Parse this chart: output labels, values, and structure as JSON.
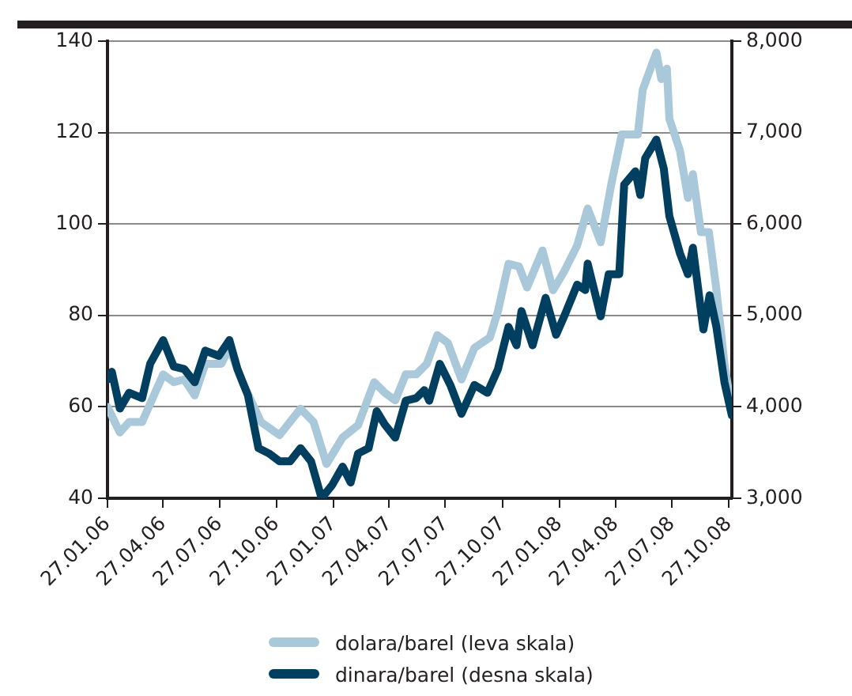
{
  "chart_data": {
    "type": "line",
    "xlim": [
      "2006-01-27",
      "2008-11-01"
    ],
    "xticks": [
      {
        "value": "2006-01-27",
        "label": "27.01.06"
      },
      {
        "value": "2006-04-27",
        "label": "27.04.06"
      },
      {
        "value": "2006-07-27",
        "label": "27.07.06"
      },
      {
        "value": "2006-10-27",
        "label": "27.10.06"
      },
      {
        "value": "2007-01-27",
        "label": "27.01.07"
      },
      {
        "value": "2007-04-27",
        "label": "27.04.07"
      },
      {
        "value": "2007-07-27",
        "label": "27.07.07"
      },
      {
        "value": "2007-10-27",
        "label": "27.10.07"
      },
      {
        "value": "2008-01-27",
        "label": "27.01.08"
      },
      {
        "value": "2008-04-27",
        "label": "27.04.08"
      },
      {
        "value": "2008-07-27",
        "label": "27.07.08"
      },
      {
        "value": "2008-10-27",
        "label": "27.10.08"
      }
    ],
    "ylim": [
      40,
      140
    ],
    "yticks": [
      40,
      60,
      80,
      100,
      120,
      140
    ],
    "y2lim": [
      3000,
      8000
    ],
    "y2ticks": [
      {
        "value": 3000,
        "label": "3,000"
      },
      {
        "value": 4000,
        "label": "4,000"
      },
      {
        "value": 5000,
        "label": "5,000"
      },
      {
        "value": 6000,
        "label": "6,000"
      },
      {
        "value": 7000,
        "label": "7,000"
      },
      {
        "value": 8000,
        "label": "8,000"
      }
    ],
    "grid": "y",
    "legend": "bottom",
    "marker": "none",
    "line_style": "solid",
    "series": [
      {
        "name": "dolara/barel (leva skala)",
        "color": "#a9c8d9",
        "x": [
          "2006-01-27",
          "2006-02-16",
          "2006-03-03",
          "2006-03-24",
          "2006-04-27",
          "2006-05-14",
          "2006-05-31",
          "2006-06-17",
          "2006-07-04",
          "2006-07-30",
          "2006-08-12",
          "2006-09-02",
          "2006-10-02",
          "2006-11-01",
          "2006-12-05",
          "2006-12-26",
          "2007-01-16",
          "2007-02-11",
          "2007-03-08",
          "2007-04-03",
          "2007-04-20",
          "2007-05-07",
          "2007-05-24",
          "2007-06-10",
          "2007-06-27",
          "2007-07-14",
          "2007-07-31",
          "2007-08-22",
          "2007-09-12",
          "2007-10-07",
          "2007-10-20",
          "2007-11-06",
          "2007-11-23",
          "2007-12-06",
          "2007-12-31",
          "2008-01-17",
          "2008-02-04",
          "2008-02-25",
          "2008-03-13",
          "2008-04-03",
          "2008-04-20",
          "2008-05-07",
          "2008-06-02",
          "2008-06-10",
          "2008-07-02",
          "2008-07-10",
          "2008-07-19",
          "2008-07-23",
          "2008-08-09",
          "2008-08-22",
          "2008-08-30",
          "2008-09-12",
          "2008-09-25",
          "2008-10-07",
          "2008-10-20",
          "2008-11-01"
        ],
        "values": [
          60,
          54.4,
          56.7,
          56.7,
          67.1,
          65.4,
          66,
          62.5,
          69.4,
          69.4,
          72.9,
          65.4,
          56.7,
          53.8,
          59.6,
          56.7,
          47.5,
          53.3,
          56,
          65.4,
          63.1,
          61.4,
          67.1,
          67.1,
          69.4,
          75.7,
          74,
          66,
          72.9,
          75.2,
          80.9,
          91.3,
          90.7,
          86.1,
          94.2,
          85.5,
          89.6,
          95.3,
          103.4,
          96,
          108.6,
          119.6,
          119.6,
          129.4,
          137.5,
          131.7,
          134,
          123,
          116.1,
          105.7,
          110.9,
          98.2,
          98.2,
          85.6,
          69.4,
          59
        ]
      },
      {
        "name": "dinara/barel (desna skala)",
        "color": "#003f5f",
        "axis": "y2",
        "x": [
          "2006-01-27",
          "2006-02-03",
          "2006-02-16",
          "2006-03-03",
          "2006-03-24",
          "2006-04-06",
          "2006-04-27",
          "2006-05-14",
          "2006-05-31",
          "2006-06-17",
          "2006-07-04",
          "2006-07-26",
          "2006-08-12",
          "2006-08-25",
          "2006-09-11",
          "2006-09-28",
          "2006-10-15",
          "2006-11-01",
          "2006-11-18",
          "2006-12-05",
          "2006-12-22",
          "2007-01-08",
          "2007-01-25",
          "2007-02-11",
          "2007-02-24",
          "2007-03-08",
          "2007-03-25",
          "2007-04-07",
          "2007-04-20",
          "2007-05-07",
          "2007-05-24",
          "2007-06-10",
          "2007-06-23",
          "2007-07-01",
          "2007-07-18",
          "2007-08-04",
          "2007-08-22",
          "2007-09-12",
          "2007-10-03",
          "2007-10-20",
          "2007-11-06",
          "2007-11-19",
          "2007-11-27",
          "2007-12-15",
          "2008-01-05",
          "2008-01-22",
          "2008-02-04",
          "2008-02-25",
          "2008-03-09",
          "2008-03-13",
          "2008-04-03",
          "2008-04-16",
          "2008-05-03",
          "2008-05-11",
          "2008-05-29",
          "2008-06-06",
          "2008-06-14",
          "2008-07-02",
          "2008-07-14",
          "2008-07-23",
          "2008-08-09",
          "2008-08-22",
          "2008-08-30",
          "2008-09-16",
          "2008-09-26",
          "2008-10-07",
          "2008-10-20",
          "2008-11-01"
        ],
        "values": [
          4298,
          4384,
          3981,
          4154,
          4096,
          4471,
          4730,
          4442,
          4413,
          4269,
          4615,
          4557,
          4730,
          4413,
          4125,
          3548,
          3490,
          3404,
          3404,
          3548,
          3404,
          3000,
          3144,
          3346,
          3173,
          3490,
          3548,
          3952,
          3808,
          3663,
          4067,
          4096,
          4183,
          4067,
          4471,
          4240,
          3923,
          4240,
          4154,
          4413,
          4874,
          4673,
          5047,
          4673,
          5192,
          4788,
          4990,
          5336,
          5278,
          5566,
          4990,
          5451,
          5451,
          6431,
          6576,
          6317,
          6720,
          6922,
          6604,
          6085,
          5682,
          5451,
          5740,
          4846,
          5220,
          4874,
          4269,
          3905
        ]
      }
    ]
  }
}
